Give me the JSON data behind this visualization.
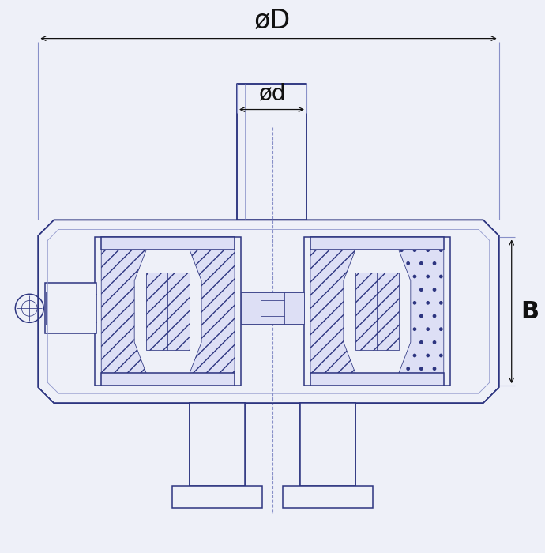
{
  "bg_color": "#eef0f8",
  "line_color": "#2d3580",
  "line_color_light": "#8890c8",
  "dim_color": "#111111",
  "label_phiD": "øD",
  "label_phid": "ød",
  "label_B": "B",
  "fig_width": 6.9,
  "fig_height": 7.0,
  "lw_main": 1.1,
  "lw_thin": 0.55,
  "lw_dim": 0.9
}
